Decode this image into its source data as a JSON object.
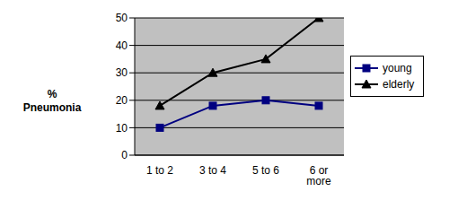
{
  "chart_data": {
    "type": "line",
    "y_label": "% Pneumonia",
    "categories": [
      "1 to 2",
      "3 to 4",
      "5 to 6",
      "6 or more"
    ],
    "series": [
      {
        "name": "young",
        "color": "#000080",
        "marker": "square",
        "values": [
          10,
          18,
          20,
          18
        ]
      },
      {
        "name": "elderly",
        "color": "#000000",
        "marker": "triangle",
        "values": [
          18,
          30,
          35,
          50
        ]
      }
    ],
    "ylim": [
      0,
      50
    ],
    "yticks": [
      0,
      10,
      20,
      30,
      40,
      50
    ],
    "grid": true,
    "legend": "right"
  }
}
